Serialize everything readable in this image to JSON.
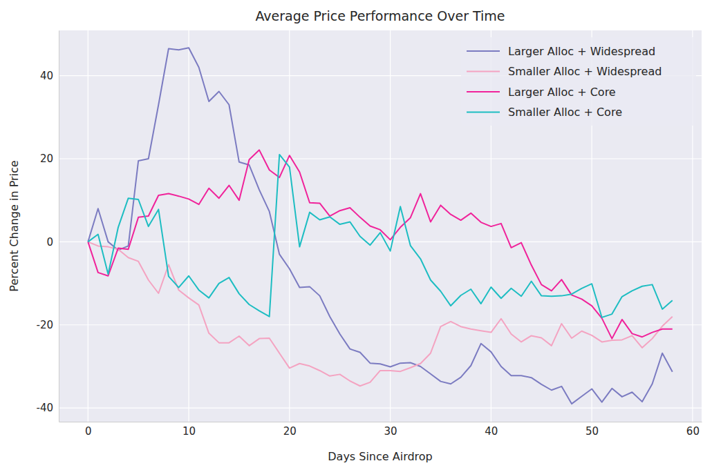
{
  "chart_data": {
    "type": "line",
    "title": "Average Price Performance Over Time",
    "x_label": "Days Since Airdrop",
    "y_label": "Percent Change in Price",
    "x": [
      0,
      1,
      2,
      3,
      4,
      5,
      6,
      7,
      8,
      9,
      10,
      11,
      12,
      13,
      14,
      15,
      16,
      17,
      18,
      19,
      20,
      21,
      22,
      23,
      24,
      25,
      26,
      27,
      28,
      29,
      30,
      31,
      32,
      33,
      34,
      35,
      36,
      37,
      38,
      39,
      40,
      41,
      42,
      43,
      44,
      45,
      46,
      47,
      48,
      49,
      50,
      51,
      52,
      53,
      54,
      55,
      56,
      57,
      58
    ],
    "series": [
      {
        "name": "Larger Alloc + Widespread",
        "color": "#7b7bc1",
        "values": [
          0,
          8,
          0,
          -2,
          -1,
          19.5,
          20,
          33,
          46.5,
          46.2,
          46.7,
          42,
          33.8,
          36.2,
          33,
          19.2,
          18.5,
          12.5,
          7.3,
          -3,
          -6.5,
          -11,
          -10.8,
          -13,
          -18,
          -22.2,
          -25.8,
          -26.6,
          -29.2,
          -29.4,
          -30.1,
          -29.2,
          -29.1,
          -30,
          -31.8,
          -33.6,
          -34.2,
          -32.6,
          -29.8,
          -24.5,
          -26.5,
          -30,
          -32.2,
          -32.2,
          -32.7,
          -34.3,
          -35.7,
          -34.8,
          -39,
          -37.2,
          -35.4,
          -38.6,
          -35.3,
          -37.3,
          -36.2,
          -38.5,
          -34.2,
          -26.8,
          -31.3
        ]
      },
      {
        "name": "Smaller Alloc + Widespread",
        "color": "#f4a3c1",
        "values": [
          0,
          -1,
          -1.2,
          -1.8,
          -3.8,
          -4.7,
          -9.2,
          -12.4,
          -5.5,
          -11.6,
          -13.5,
          -15.2,
          -22,
          -24.3,
          -24.3,
          -22.7,
          -25,
          -23.3,
          -23.2,
          -26.8,
          -30.4,
          -29.3,
          -29.9,
          -31,
          -32.3,
          -31.9,
          -33.5,
          -34.7,
          -33.8,
          -31,
          -31,
          -31.2,
          -30.3,
          -29.3,
          -26.8,
          -20.4,
          -19.2,
          -20.4,
          -21,
          -21.4,
          -21.8,
          -18.5,
          -22.2,
          -24.1,
          -22.6,
          -23.1,
          -25,
          -19.7,
          -23.2,
          -21.5,
          -22.5,
          -24.1,
          -23.7,
          -23.6,
          -22.6,
          -25.5,
          -23.3,
          -20.3,
          -18
        ]
      },
      {
        "name": "Larger Alloc + Core",
        "color": "#f0229a",
        "values": [
          0,
          -7.4,
          -8.2,
          -1.5,
          -1.8,
          5.9,
          6.2,
          11.2,
          11.6,
          11,
          10.3,
          9,
          12.9,
          10.5,
          13.6,
          10,
          19.8,
          22.1,
          17.3,
          15.5,
          20.8,
          16.8,
          9.4,
          9.3,
          6.2,
          7.5,
          8.2,
          5.9,
          3.8,
          2.9,
          0.5,
          3.5,
          5.8,
          11.6,
          4.8,
          8.8,
          6.6,
          5.2,
          6.9,
          4.7,
          3.7,
          4.4,
          -1.4,
          -0.2,
          -5.6,
          -10.3,
          -11.8,
          -9.1,
          -12.8,
          -13.8,
          -15.4,
          -18.4,
          -23.3,
          -18.7,
          -22.1,
          -22.9,
          -21.8,
          -21,
          -21
        ]
      },
      {
        "name": "Smaller Alloc + Core",
        "color": "#1dbdc2",
        "values": [
          0,
          1.8,
          -7.8,
          3.5,
          10.5,
          10.2,
          3.7,
          7.8,
          -8.3,
          -11,
          -8.2,
          -11.6,
          -13.5,
          -10,
          -8.6,
          -12.5,
          -15.1,
          -16.6,
          -18,
          21,
          18,
          -1.2,
          7.1,
          5.3,
          6,
          4.2,
          4.8,
          1.3,
          -0.8,
          2.2,
          -2.2,
          8.5,
          -0.9,
          -4.1,
          -9.2,
          -11.9,
          -15.4,
          -12.9,
          -11.4,
          -14.9,
          -10.9,
          -13.6,
          -11.2,
          -13.1,
          -9.5,
          -13,
          -13.1,
          -13,
          -12.6,
          -11.2,
          -10.1,
          -18.2,
          -17.4,
          -13.2,
          -11.8,
          -10.7,
          -10.3,
          -16.2,
          -14.1
        ]
      }
    ],
    "xlim": [
      -2.9,
      60.9
    ],
    "ylim": [
      -43.3,
      50.9
    ],
    "xticks": [
      0,
      10,
      20,
      30,
      40,
      50,
      60
    ],
    "yticks": [
      -40,
      -20,
      0,
      20,
      40
    ],
    "grid": true,
    "legend": "upper right"
  }
}
